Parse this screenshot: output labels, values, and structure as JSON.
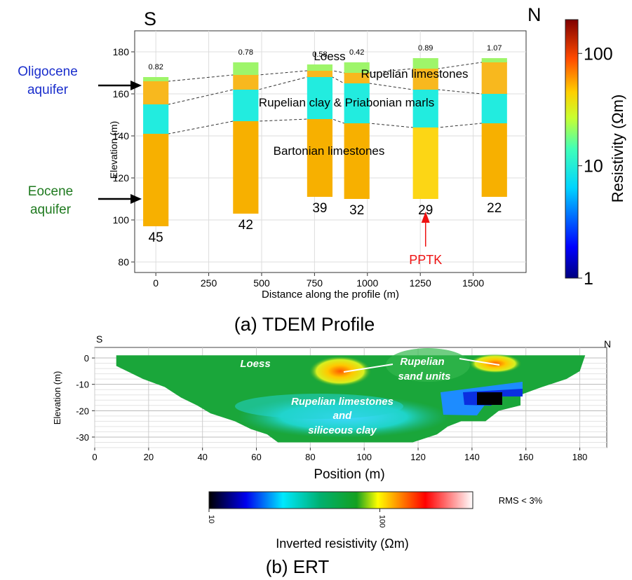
{
  "colors": {
    "loess": "#9ef56a",
    "rupelian_limestones": "#f8b81e",
    "clay_marls": "#22ecdf",
    "bartonian": "#f7b000",
    "bartonian_light": "#fcd615",
    "left_annotation_top": "#1a2ecc",
    "left_annotation_bottom": "#1f7a1f",
    "pptk": "#ee1111"
  },
  "chart_data": [
    {
      "type": "bar",
      "title": "",
      "caption": "(a) TDEM Profile",
      "xlabel": "Distance along the profile (m)",
      "ylabel": "Elevation (m)",
      "xlim": [
        -100,
        1750
      ],
      "ylim": [
        75,
        190
      ],
      "x_ticks": [
        0,
        250,
        500,
        750,
        1000,
        1250,
        1500
      ],
      "y_ticks": [
        80,
        100,
        120,
        140,
        160,
        180
      ],
      "grid": true,
      "corner_labels": {
        "left": "S",
        "right": "N"
      },
      "colorbar": {
        "label": "Resistivity (Ωm)",
        "scale": "log",
        "range": [
          1,
          200
        ],
        "ticks": [
          "1",
          "10",
          "100"
        ]
      },
      "soundings": [
        {
          "x": 0,
          "top": 168,
          "bottom": 97,
          "rms": "0.82",
          "depth_label": "45",
          "layers": [
            {
              "top": 168,
              "bottom": 166,
              "unit": "loess"
            },
            {
              "top": 166,
              "bottom": 155,
              "unit": "rupelian_limestones"
            },
            {
              "top": 155,
              "bottom": 141,
              "unit": "clay_marls"
            },
            {
              "top": 141,
              "bottom": 97,
              "unit": "bartonian"
            }
          ]
        },
        {
          "x": 425,
          "top": 175,
          "bottom": 103,
          "rms": "0.78",
          "depth_label": "42",
          "layers": [
            {
              "top": 175,
              "bottom": 169,
              "unit": "loess"
            },
            {
              "top": 169,
              "bottom": 162,
              "unit": "rupelian_limestones"
            },
            {
              "top": 162,
              "bottom": 147,
              "unit": "clay_marls"
            },
            {
              "top": 147,
              "bottom": 103,
              "unit": "bartonian"
            }
          ]
        },
        {
          "x": 775,
          "top": 174,
          "bottom": 111,
          "rms": "0.58",
          "depth_label": "39",
          "layers": [
            {
              "top": 174,
              "bottom": 171,
              "unit": "loess"
            },
            {
              "top": 171,
              "bottom": 168,
              "unit": "rupelian_limestones"
            },
            {
              "top": 168,
              "bottom": 148,
              "unit": "clay_marls"
            },
            {
              "top": 148,
              "bottom": 111,
              "unit": "bartonian"
            }
          ]
        },
        {
          "x": 950,
          "top": 175,
          "bottom": 110,
          "rms": "0.42",
          "depth_label": "32",
          "layers": [
            {
              "top": 175,
              "bottom": 170,
              "unit": "loess"
            },
            {
              "top": 170,
              "bottom": 165,
              "unit": "rupelian_limestones"
            },
            {
              "top": 165,
              "bottom": 146,
              "unit": "clay_marls"
            },
            {
              "top": 146,
              "bottom": 110,
              "unit": "bartonian"
            }
          ]
        },
        {
          "x": 1275,
          "top": 177,
          "bottom": 110,
          "rms": "0.89",
          "depth_label": "29",
          "layers": [
            {
              "top": 177,
              "bottom": 172,
              "unit": "loess"
            },
            {
              "top": 172,
              "bottom": 162,
              "unit": "rupelian_limestones"
            },
            {
              "top": 162,
              "bottom": 144,
              "unit": "clay_marls"
            },
            {
              "top": 144,
              "bottom": 110,
              "unit": "bartonian_light"
            }
          ]
        },
        {
          "x": 1600,
          "top": 177,
          "bottom": 111,
          "rms": "1.07",
          "depth_label": "22",
          "layers": [
            {
              "top": 177,
              "bottom": 175,
              "unit": "loess"
            },
            {
              "top": 175,
              "bottom": 160,
              "unit": "rupelian_limestones"
            },
            {
              "top": 160,
              "bottom": 146,
              "unit": "clay_marls"
            },
            {
              "top": 146,
              "bottom": 111,
              "unit": "bartonian"
            }
          ]
        }
      ],
      "unit_labels": [
        "Loess",
        "Rupelian limestones",
        "Rupelian clay & Priabonian marls",
        "Bartonian limestones"
      ],
      "left_annotations": [
        {
          "text": [
            "Oligocene",
            "aquifer"
          ],
          "elevation": 164
        },
        {
          "text": [
            "Eocene",
            "aquifer"
          ],
          "elevation": 110
        }
      ],
      "pptk": {
        "label": "PPTK",
        "x": 1275
      }
    },
    {
      "type": "heatmap",
      "title": "",
      "caption": "(b) ERT",
      "xlabel": "Position (m)",
      "ylabel": "Elevation (m)",
      "xlim": [
        0,
        190
      ],
      "ylim": [
        -34,
        4
      ],
      "x_ticks": [
        0,
        20,
        40,
        60,
        80,
        100,
        120,
        140,
        160,
        180
      ],
      "y_ticks": [
        0,
        -10,
        -20,
        -30
      ],
      "grid": true,
      "corner_labels": {
        "left": "S",
        "right": "N"
      },
      "annotations": [
        "Loess",
        "Rupelian",
        "sand units",
        "Rupelian limestones",
        "and",
        "siliceous clay"
      ],
      "colorbar": {
        "label": "Inverted resistivity (Ωm)",
        "scale": "log",
        "range": [
          10,
          350
        ],
        "ticks": [
          "10",
          "100"
        ],
        "rms_note": "RMS < 3%"
      }
    }
  ]
}
